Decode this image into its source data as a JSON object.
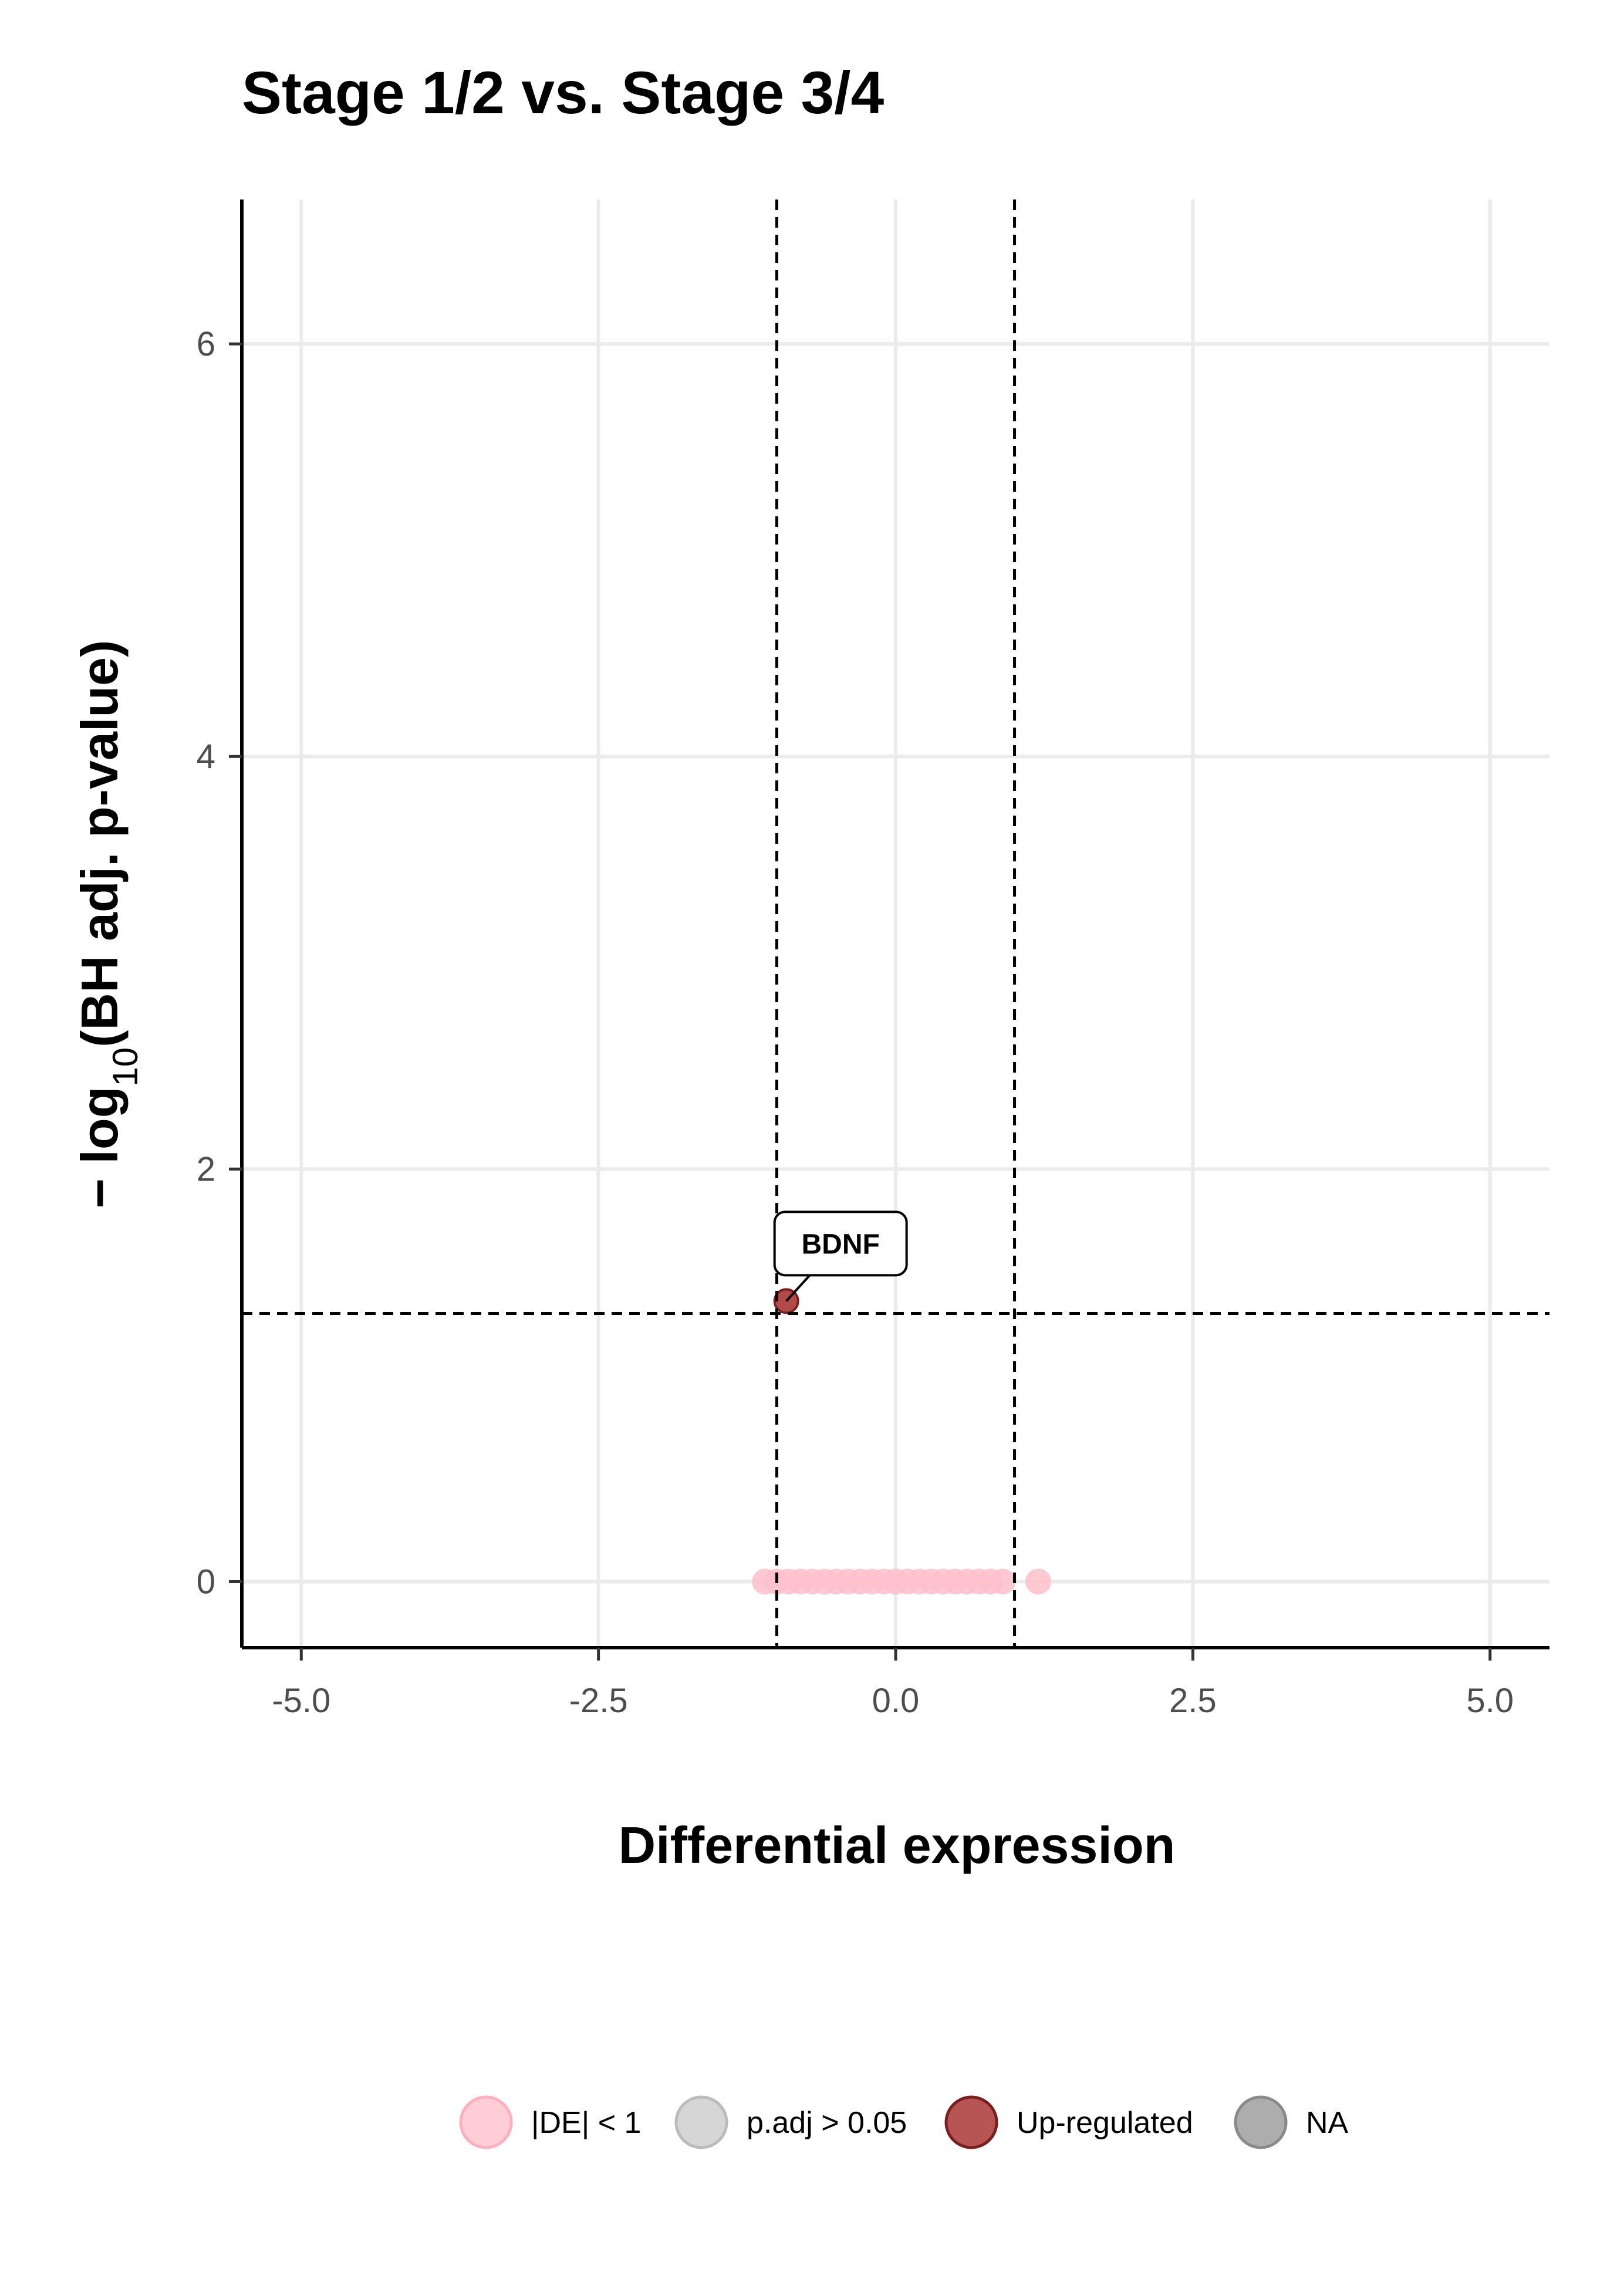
{
  "chart_data": {
    "type": "scatter",
    "title": "Stage 1/2 vs. Stage 3/4",
    "xlabel": "Differential expression",
    "ylabel_parts": {
      "prefix": "− log",
      "subscript": "10",
      "suffix": "(BH adj. p-value)"
    },
    "xlim": [
      -5.5,
      5.5
    ],
    "ylim": [
      -0.32,
      6.7
    ],
    "x_ticks": [
      -5.0,
      -2.5,
      0.0,
      2.5,
      5.0
    ],
    "x_tick_labels": [
      "-5.0",
      "-2.5",
      "0.0",
      "2.5",
      "5.0"
    ],
    "y_ticks": [
      0,
      2,
      4,
      6
    ],
    "y_tick_labels": [
      "0",
      "2",
      "4",
      "6"
    ],
    "grid": true,
    "thresholds": {
      "vertical": [
        -1,
        1
      ],
      "horizontal": 1.3
    },
    "legend": {
      "position": "bottom",
      "entries": [
        {
          "label": "|DE| < 1",
          "color": "#ffc0cb"
        },
        {
          "label": "p.adj > 0.05",
          "color": "#cccccc"
        },
        {
          "label": "Up-regulated",
          "color": "#a52a2a"
        },
        {
          "label": "NA",
          "color": "#999999"
        }
      ]
    },
    "series": [
      {
        "name": "|DE| < 1",
        "color": "#ffc0cb",
        "points": [
          {
            "x": -1.1,
            "y": 0
          },
          {
            "x": -1.0,
            "y": 0
          },
          {
            "x": -0.9,
            "y": 0
          },
          {
            "x": -0.8,
            "y": 0
          },
          {
            "x": -0.7,
            "y": 0
          },
          {
            "x": -0.6,
            "y": 0
          },
          {
            "x": -0.5,
            "y": 0
          },
          {
            "x": -0.4,
            "y": 0
          },
          {
            "x": -0.3,
            "y": 0
          },
          {
            "x": -0.2,
            "y": 0
          },
          {
            "x": -0.1,
            "y": 0
          },
          {
            "x": 0.0,
            "y": 0
          },
          {
            "x": 0.1,
            "y": 0
          },
          {
            "x": 0.2,
            "y": 0
          },
          {
            "x": 0.3,
            "y": 0
          },
          {
            "x": 0.4,
            "y": 0
          },
          {
            "x": 0.5,
            "y": 0
          },
          {
            "x": 0.6,
            "y": 0
          },
          {
            "x": 0.7,
            "y": 0
          },
          {
            "x": 0.8,
            "y": 0
          },
          {
            "x": 0.9,
            "y": 0
          },
          {
            "x": 1.2,
            "y": 0
          }
        ]
      },
      {
        "name": "Up-regulated",
        "color": "#a52a2a",
        "points": [
          {
            "x": -0.92,
            "y": 1.36,
            "label": "BDNF"
          }
        ]
      }
    ]
  }
}
